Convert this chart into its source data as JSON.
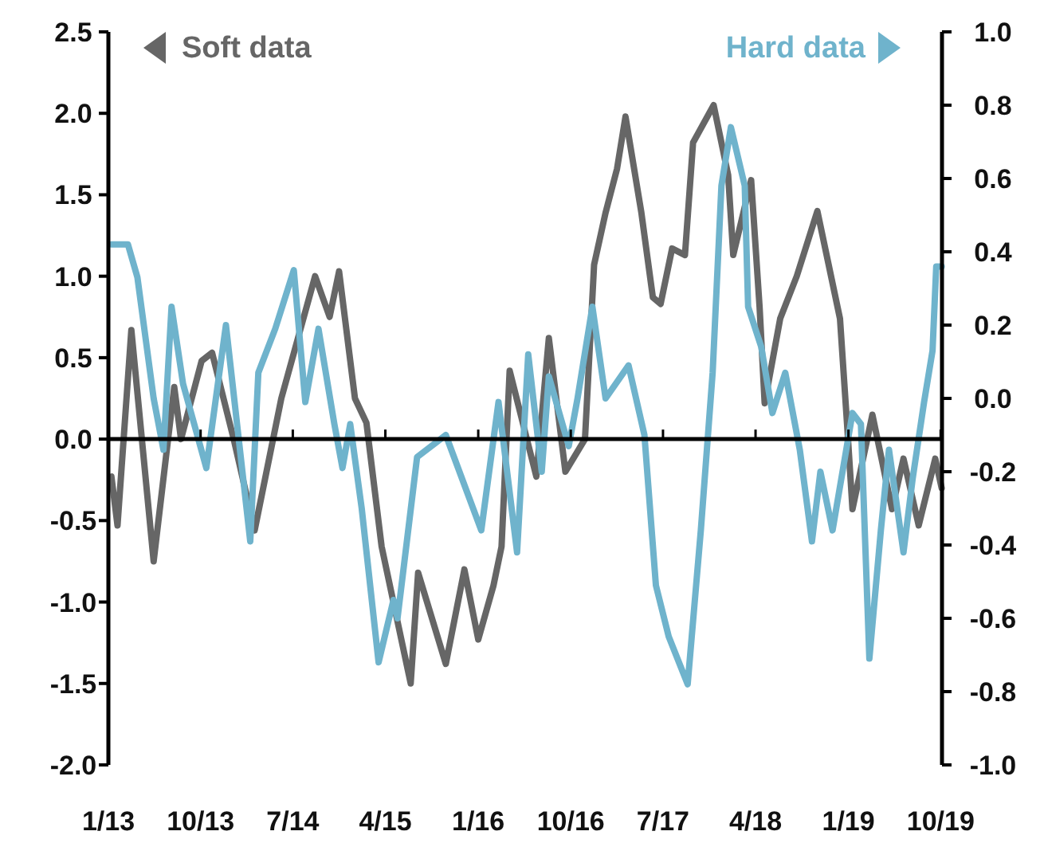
{
  "chart_data": {
    "type": "line",
    "legend": "top",
    "line_style": "solid",
    "grid": false,
    "xlim": [
      "2013-01-01",
      "2019-10-05"
    ],
    "xticks": [
      {
        "value": "2013-01-01",
        "label": "1/13"
      },
      {
        "value": "2013-10-01",
        "label": "10/13"
      },
      {
        "value": "2014-07-01",
        "label": "7/14"
      },
      {
        "value": "2015-04-01",
        "label": "4/15"
      },
      {
        "value": "2016-01-01",
        "label": "1/16"
      },
      {
        "value": "2016-10-01",
        "label": "10/16"
      },
      {
        "value": "2017-07-01",
        "label": "7/17"
      },
      {
        "value": "2018-04-01",
        "label": "4/18"
      },
      {
        "value": "2019-01-01",
        "label": "1/19"
      },
      {
        "value": "2019-10-01",
        "label": "10/19"
      }
    ],
    "ylim": [
      -2,
      2.5
    ],
    "yticks": [
      {
        "value": -2,
        "label": "-2.0"
      },
      {
        "value": -1.5,
        "label": "-1.5"
      },
      {
        "value": -1,
        "label": "-1.0"
      },
      {
        "value": -0.5,
        "label": "-0.5"
      },
      {
        "value": 0,
        "label": "0.0"
      },
      {
        "value": 0.5,
        "label": "0.5"
      },
      {
        "value": 1,
        "label": "1.0"
      },
      {
        "value": 1.5,
        "label": "1.5"
      },
      {
        "value": 2,
        "label": "2.0"
      },
      {
        "value": 2.5,
        "label": "2.5"
      }
    ],
    "ref_lines": [
      {
        "axis": "y",
        "value": 0,
        "color": "#000000"
      }
    ],
    "y2lim": [
      -1,
      1
    ],
    "y2ticks": [
      {
        "value": -1,
        "label": "-1.0"
      },
      {
        "value": -0.8,
        "label": "-0.8"
      },
      {
        "value": -0.6,
        "label": "-0.6"
      },
      {
        "value": -0.4,
        "label": "-0.4"
      },
      {
        "value": -0.2,
        "label": "-0.2"
      },
      {
        "value": 0,
        "label": "0.0"
      },
      {
        "value": 0.2,
        "label": "0.2"
      },
      {
        "value": 0.4,
        "label": "0.4"
      },
      {
        "value": 0.6,
        "label": "0.6"
      },
      {
        "value": 0.8,
        "label": "0.8"
      },
      {
        "value": 1,
        "label": "1.0"
      }
    ],
    "series": [
      {
        "name": "Soft data",
        "color": "#666666",
        "x": [
          "2013-01-10",
          "2013-01-28",
          "2013-03-10",
          "2013-05-15",
          "2013-07-15",
          "2013-08-04",
          "2013-10-04",
          "2013-11-04",
          "2014-01-07",
          "2014-03-10",
          "2014-05-28",
          "2014-09-05",
          "2014-10-18",
          "2014-11-15",
          "2015-01-01",
          "2015-02-04",
          "2015-03-21",
          "2015-06-15",
          "2015-07-07",
          "2015-09-27",
          "2015-11-21",
          "2016-01-01",
          "2016-02-15",
          "2016-03-10",
          "2016-04-03",
          "2016-06-21",
          "2016-07-28",
          "2016-09-15",
          "2016-11-12",
          "2016-12-09",
          "2017-01-12",
          "2017-02-15",
          "2017-03-12",
          "2017-04-28",
          "2017-06-01",
          "2017-06-24",
          "2017-07-28",
          "2017-09-04",
          "2017-09-28",
          "2017-11-28",
          "2018-01-10",
          "2018-01-25",
          "2018-03-19",
          "2018-04-13",
          "2018-04-28",
          "2018-06-13",
          "2018-08-01",
          "2018-10-01",
          "2018-12-07",
          "2018-12-28",
          "2019-01-13",
          "2019-03-13",
          "2019-05-10",
          "2019-06-13",
          "2019-07-28",
          "2019-09-15",
          "2019-10-04"
        ],
        "values": [
          -0.23,
          -0.53,
          0.67,
          -0.75,
          0.32,
          0.0,
          0.48,
          0.53,
          0.0,
          -0.56,
          0.25,
          1.0,
          0.75,
          1.03,
          0.25,
          0.1,
          -0.66,
          -1.5,
          -0.82,
          -1.38,
          -0.8,
          -1.23,
          -0.9,
          -0.66,
          0.42,
          -0.23,
          0.62,
          -0.2,
          0.0,
          1.07,
          1.39,
          1.66,
          1.98,
          1.39,
          0.87,
          0.83,
          1.17,
          1.13,
          1.82,
          2.05,
          1.62,
          1.13,
          1.59,
          0.81,
          0.22,
          0.74,
          1.0,
          1.4,
          0.74,
          0.09,
          -0.43,
          0.15,
          -0.43,
          -0.12,
          -0.53,
          -0.12,
          -0.3
        ]
      },
      {
        "name": "Hard data",
        "color": "#6fb3cc",
        "axis": "y2",
        "x": [
          "2013-01-10",
          "2013-02-28",
          "2013-03-28",
          "2013-05-15",
          "2013-06-13",
          "2013-07-07",
          "2013-08-10",
          "2013-10-18",
          "2013-12-15",
          "2014-02-25",
          "2014-03-21",
          "2014-05-10",
          "2014-07-04",
          "2014-08-07",
          "2014-09-15",
          "2014-11-01",
          "2014-11-25",
          "2014-12-18",
          "2015-01-21",
          "2015-03-12",
          "2015-04-25",
          "2015-05-07",
          "2015-07-04",
          "2015-09-27",
          "2016-01-10",
          "2016-03-01",
          "2016-04-25",
          "2016-05-28",
          "2016-07-07",
          "2016-07-28",
          "2016-09-25",
          "2016-10-21",
          "2016-12-04",
          "2017-01-12",
          "2017-03-21",
          "2017-05-07",
          "2017-06-10",
          "2017-07-18",
          "2017-09-12",
          "2017-10-21",
          "2017-11-25",
          "2017-12-21",
          "2018-01-18",
          "2018-02-28",
          "2018-03-10",
          "2018-04-18",
          "2018-05-21",
          "2018-06-28",
          "2018-08-10",
          "2018-09-15",
          "2018-10-10",
          "2018-11-15",
          "2019-01-13",
          "2019-02-07",
          "2019-03-04",
          "2019-04-07",
          "2019-05-01",
          "2019-06-13",
          "2019-07-10",
          "2019-08-13",
          "2019-09-07",
          "2019-09-18",
          "2019-10-04"
        ],
        "values": [
          0.42,
          0.42,
          0.33,
          0.0,
          -0.14,
          0.25,
          0.04,
          -0.19,
          0.2,
          -0.39,
          0.07,
          0.19,
          0.35,
          -0.01,
          0.19,
          -0.07,
          -0.19,
          -0.07,
          -0.3,
          -0.72,
          -0.55,
          -0.6,
          -0.16,
          -0.1,
          -0.36,
          -0.01,
          -0.42,
          0.12,
          -0.2,
          0.06,
          -0.13,
          0.0,
          0.25,
          0.0,
          0.09,
          -0.1,
          -0.51,
          -0.65,
          -0.78,
          -0.36,
          0.07,
          0.58,
          0.74,
          0.58,
          0.25,
          0.14,
          -0.04,
          0.07,
          -0.14,
          -0.39,
          -0.2,
          -0.36,
          -0.04,
          -0.07,
          -0.71,
          -0.36,
          -0.14,
          -0.42,
          -0.22,
          -0.01,
          0.13,
          0.36,
          0.36
        ]
      }
    ]
  }
}
